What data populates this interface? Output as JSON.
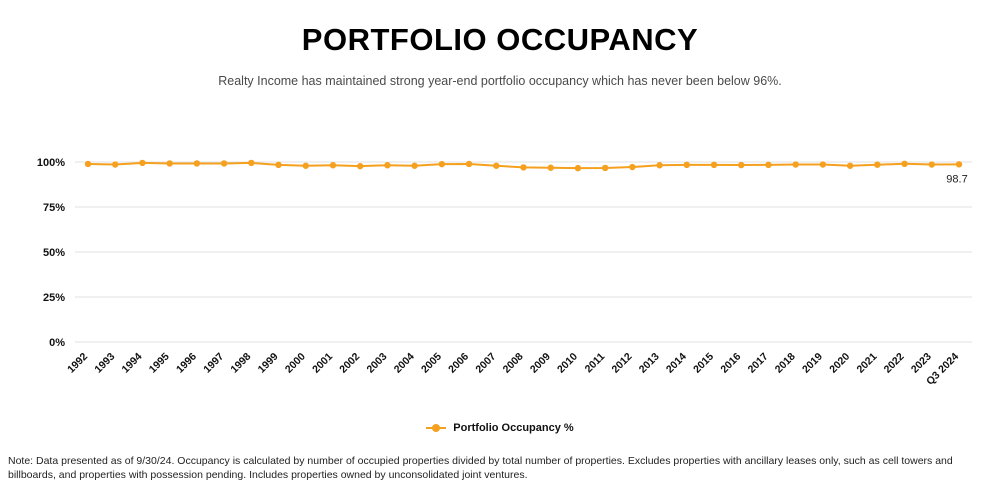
{
  "header": {
    "title": "PORTFOLIO OCCUPANCY",
    "subtitle": "Realty Income has maintained strong year-end portfolio occupancy which has never been below 96%."
  },
  "chart_data": {
    "type": "line",
    "title": "Portfolio Occupancy",
    "categories": [
      "1992",
      "1993",
      "1994",
      "1995",
      "1996",
      "1997",
      "1998",
      "1999",
      "2000",
      "2001",
      "2002",
      "2003",
      "2004",
      "2005",
      "2006",
      "2007",
      "2008",
      "2009",
      "2010",
      "2011",
      "2012",
      "2013",
      "2014",
      "2015",
      "2016",
      "2017",
      "2018",
      "2019",
      "2020",
      "2021",
      "2022",
      "2023",
      "Q3 2024"
    ],
    "series": [
      {
        "name": "Portfolio Occupancy %",
        "values": [
          98.9,
          98.6,
          99.5,
          99.2,
          99.2,
          99.2,
          99.5,
          98.4,
          97.9,
          98.2,
          97.7,
          98.2,
          97.9,
          98.8,
          98.9,
          97.9,
          97.0,
          96.8,
          96.6,
          96.7,
          97.2,
          98.2,
          98.4,
          98.4,
          98.3,
          98.4,
          98.6,
          98.6,
          97.9,
          98.5,
          99.0,
          98.6,
          98.7
        ]
      }
    ],
    "ylim": [
      0,
      100
    ],
    "yticks": [
      0,
      25,
      50,
      75,
      100
    ],
    "ytick_labels": [
      "0%",
      "25%",
      "50%",
      "75%",
      "100%"
    ],
    "grid": true,
    "legend_position": "bottom",
    "last_point_label": "98.7",
    "line_color": "#F5A01E",
    "gridline_color": "#e1e1e1"
  },
  "footer": {
    "note": "Note: Data presented as of 9/30/24. Occupancy is calculated by number of occupied properties divided by total number of properties. Excludes properties with ancillary leases only, such as cell towers and billboards, and properties with possession pending. Includes properties owned by unconsolidated joint ventures."
  }
}
